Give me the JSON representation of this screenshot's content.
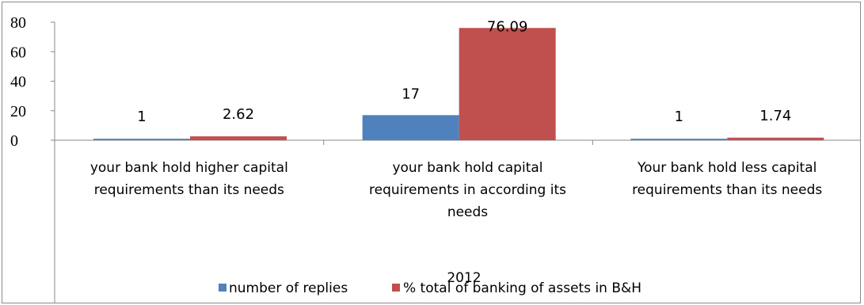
{
  "chart_data": {
    "type": "bar",
    "title": "",
    "xlabel": "2012",
    "ylabel": "",
    "ylim": [
      0,
      80
    ],
    "yticks": [
      "0",
      "20",
      "40",
      "60",
      "80"
    ],
    "grid": false,
    "legend_position": "bottom",
    "categories": [
      "your bank hold higher capital requirements than its needs",
      "your bank hold capital requirements in according its needs",
      "Your bank hold less capital requirements than its needs"
    ],
    "category_lines": [
      [
        "your bank hold higher capital",
        "requirements than its needs"
      ],
      [
        "your bank hold capital",
        "requirements in according its",
        "needs"
      ],
      [
        "Your bank hold less capital",
        "requirements than its needs"
      ]
    ],
    "series": [
      {
        "name": "number of replies",
        "color": "#4f81bd",
        "values": [
          1,
          17,
          1
        ],
        "labels": [
          "1",
          "17",
          "1"
        ]
      },
      {
        "name": "% total of banking of assets in B&H",
        "color": "#c0504d",
        "values": [
          2.62,
          76.09,
          1.74
        ],
        "labels": [
          "2.62",
          "76.09",
          "1.74"
        ]
      }
    ]
  }
}
